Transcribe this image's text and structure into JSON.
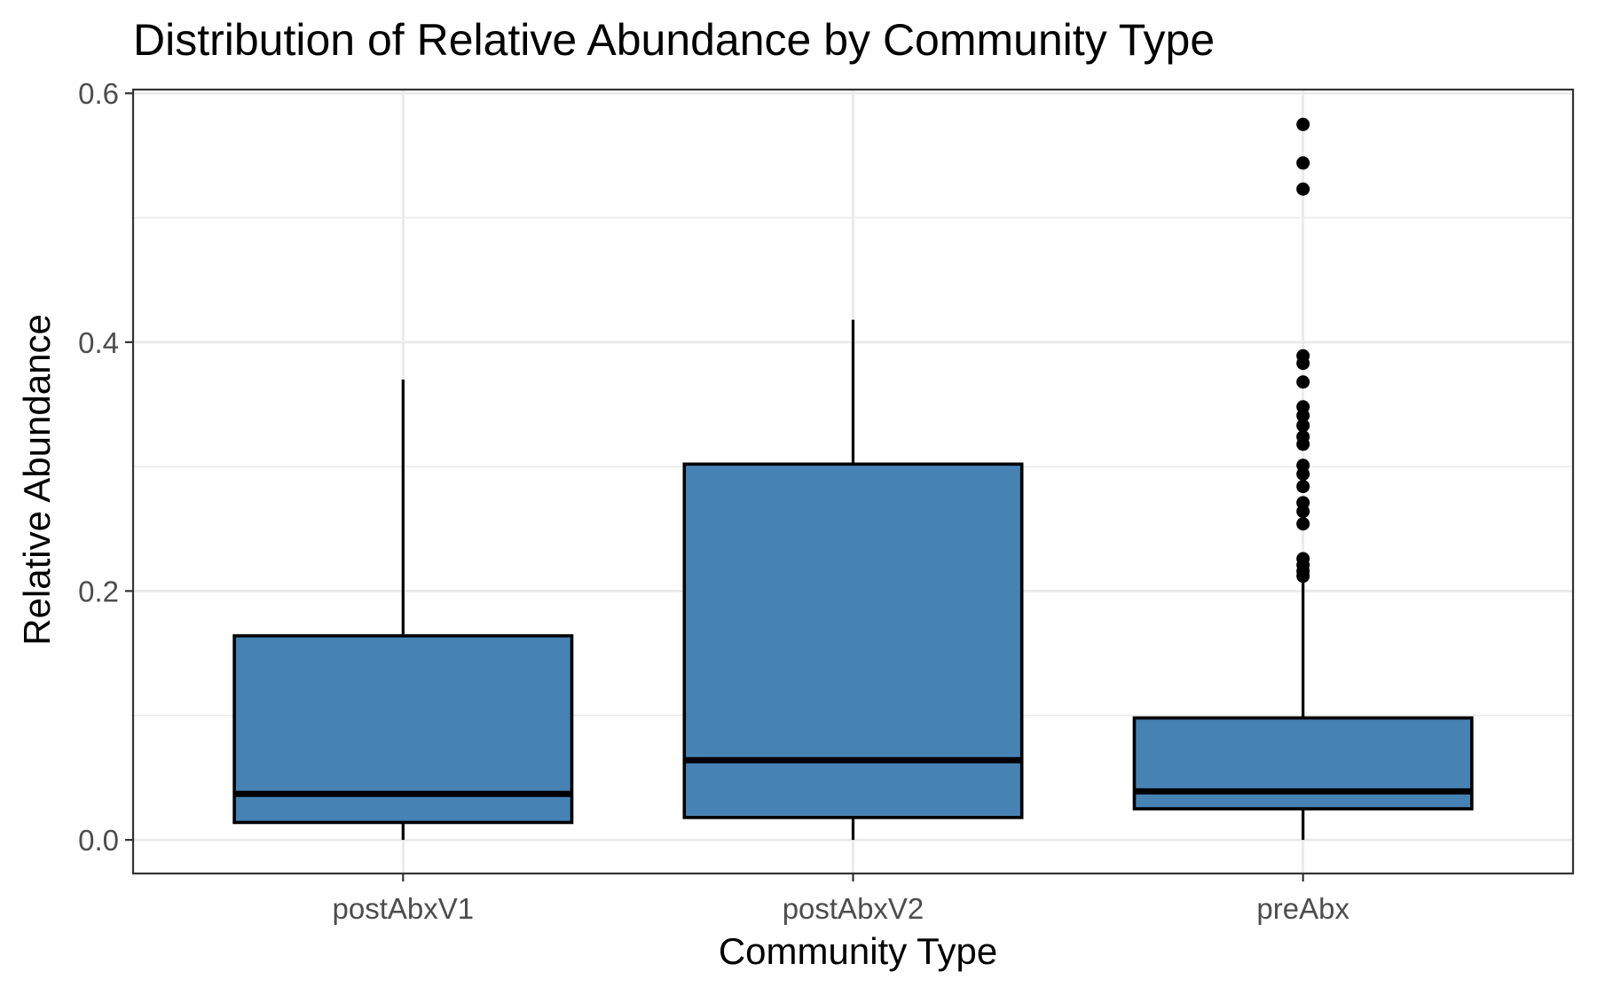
{
  "chart_data": {
    "type": "boxplot",
    "title": "Distribution of Relative Abundance by Community Type",
    "xlabel": "Community Type",
    "ylabel": "Relative Abundance",
    "ylim": [
      -0.027,
      0.603
    ],
    "yticks": [
      0.0,
      0.2,
      0.4,
      0.6
    ],
    "ytick_labels": [
      "0.0",
      "0.2",
      "0.4",
      "0.6"
    ],
    "yticks_minor": [
      0.1,
      0.3,
      0.5
    ],
    "grid": true,
    "legend": "none",
    "fill_color": "#4682b4",
    "outline_color": "#000000",
    "categories": [
      "postAbxV1",
      "postAbxV2",
      "preAbx"
    ],
    "boxes": [
      {
        "category": "postAbxV1",
        "whisker_low": 0.0,
        "q1": 0.014,
        "median": 0.037,
        "q3": 0.164,
        "whisker_high": 0.37,
        "outliers": []
      },
      {
        "category": "postAbxV2",
        "whisker_low": 0.0,
        "q1": 0.018,
        "median": 0.064,
        "q3": 0.302,
        "whisker_high": 0.418,
        "outliers": []
      },
      {
        "category": "preAbx",
        "whisker_low": 0.0,
        "q1": 0.025,
        "median": 0.039,
        "q3": 0.098,
        "whisker_high": 0.21,
        "outliers": [
          0.212,
          0.216,
          0.221,
          0.226,
          0.254,
          0.264,
          0.271,
          0.284,
          0.294,
          0.301,
          0.318,
          0.324,
          0.333,
          0.341,
          0.348,
          0.368,
          0.383,
          0.389,
          0.523,
          0.544,
          0.575
        ]
      }
    ]
  }
}
